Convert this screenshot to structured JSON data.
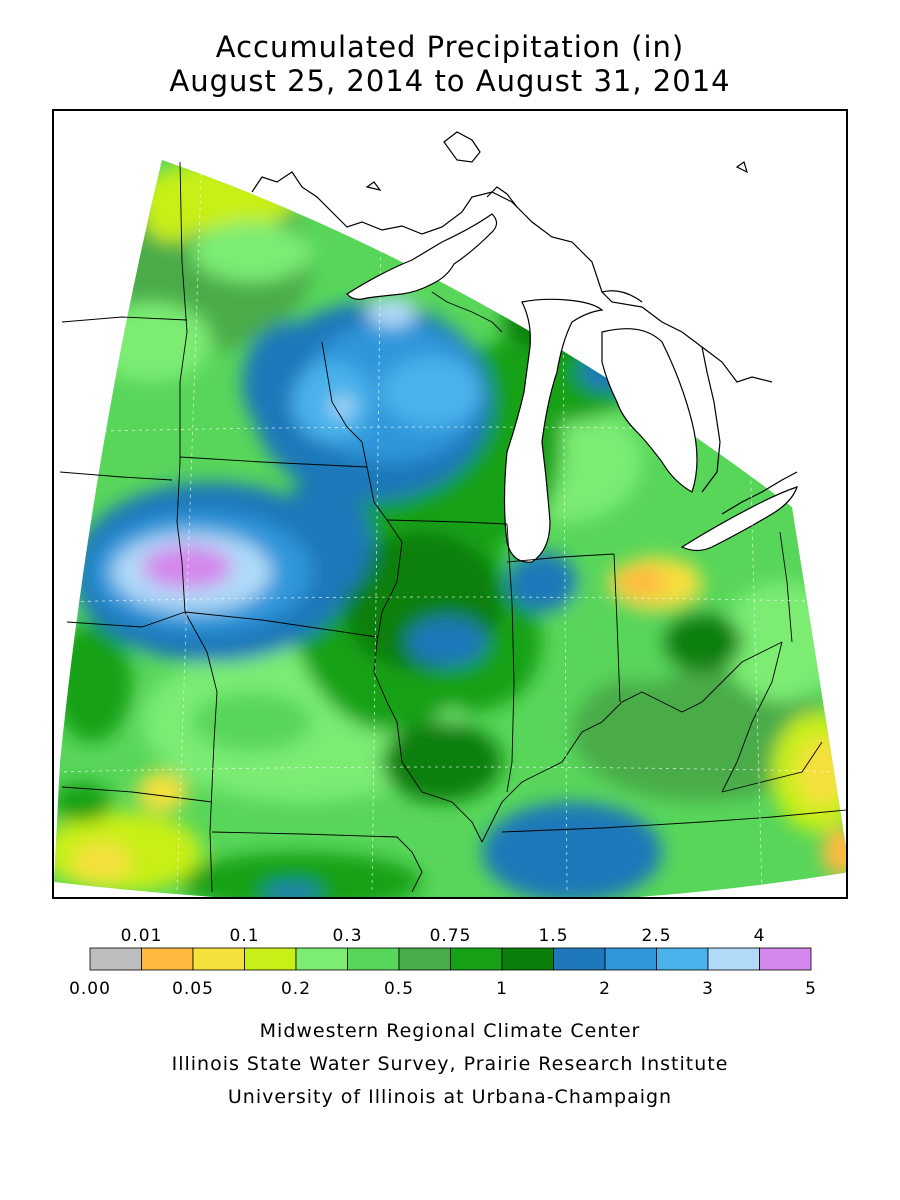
{
  "title": {
    "line1": "Accumulated Precipitation (in)",
    "line2": "August 25, 2014 to August 31, 2014"
  },
  "legend": {
    "bins": [
      {
        "color": "#bdbdbd"
      },
      {
        "color": "#ffb93f"
      },
      {
        "color": "#f6e03c"
      },
      {
        "color": "#c8ef18"
      },
      {
        "color": "#7cec73"
      },
      {
        "color": "#58d65a"
      },
      {
        "color": "#48ac4a"
      },
      {
        "color": "#17a117"
      },
      {
        "color": "#0a7f0a"
      },
      {
        "color": "#1f78b9"
      },
      {
        "color": "#2f97da"
      },
      {
        "color": "#49b2eb"
      },
      {
        "color": "#b0daf8"
      },
      {
        "color": "#d487ec"
      }
    ],
    "labels_top": [
      "0.01",
      "0.1",
      "0.3",
      "0.75",
      "1.5",
      "2.5",
      "4"
    ],
    "labels_bottom": [
      "0.00",
      "0.05",
      "0.2",
      "0.5",
      "1",
      "2",
      "3",
      "5"
    ]
  },
  "credits": {
    "line1": "Midwestern Regional Climate Center",
    "line2": "Illinois State Water Survey, Prairie Research Institute",
    "line3": "University of Illinois at Urbana-Champaign"
  }
}
